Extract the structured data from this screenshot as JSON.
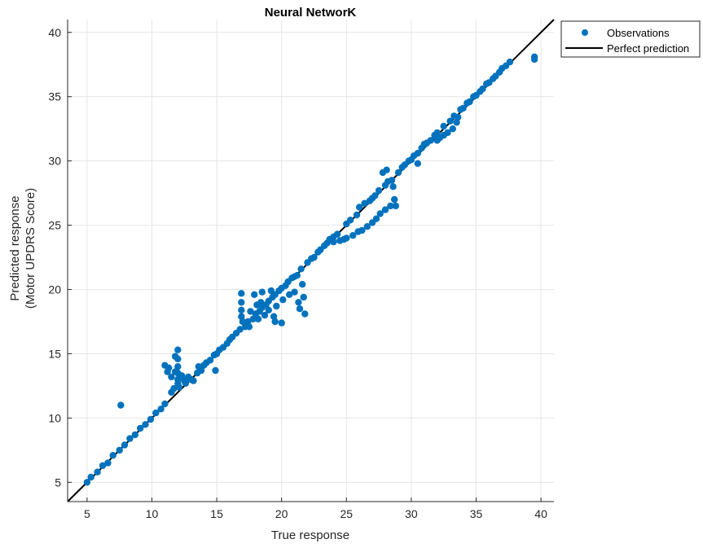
{
  "chart_data": {
    "type": "scatter",
    "title": "Neural NetworK",
    "xlabel": "True response",
    "ylabel_lines": [
      "Predicted response",
      "(Motor UPDRS Score)"
    ],
    "xlim": [
      3.5,
      41
    ],
    "ylim": [
      3.5,
      41
    ],
    "xticks": [
      5,
      10,
      15,
      20,
      25,
      30,
      35,
      40
    ],
    "yticks": [
      5,
      10,
      15,
      20,
      25,
      30,
      35,
      40
    ],
    "grid": true,
    "legend_position": "outside top-right",
    "colors": {
      "observations": "#0072BD",
      "perfect_line": "#000000"
    },
    "series": [
      {
        "name": "Observations",
        "kind": "scatter",
        "points": [
          [
            5.0,
            5.0
          ],
          [
            5.3,
            5.4
          ],
          [
            5.8,
            5.8
          ],
          [
            6.2,
            6.3
          ],
          [
            6.6,
            6.5
          ],
          [
            7.0,
            7.1
          ],
          [
            7.5,
            7.5
          ],
          [
            7.6,
            11.0
          ],
          [
            7.9,
            7.9
          ],
          [
            8.3,
            8.4
          ],
          [
            8.7,
            8.7
          ],
          [
            9.1,
            9.2
          ],
          [
            9.5,
            9.5
          ],
          [
            9.9,
            9.9
          ],
          [
            10.3,
            10.4
          ],
          [
            10.7,
            10.7
          ],
          [
            11.0,
            11.1
          ],
          [
            11.0,
            14.1
          ],
          [
            11.2,
            13.6
          ],
          [
            11.3,
            13.9
          ],
          [
            11.5,
            13.2
          ],
          [
            11.5,
            12.0
          ],
          [
            11.7,
            12.3
          ],
          [
            11.8,
            13.6
          ],
          [
            11.8,
            14.8
          ],
          [
            12.0,
            15.3
          ],
          [
            12.0,
            14.6
          ],
          [
            12.0,
            14.0
          ],
          [
            12.0,
            13.5
          ],
          [
            12.0,
            13.0
          ],
          [
            12.0,
            12.7
          ],
          [
            12.1,
            12.4
          ],
          [
            12.3,
            13.3
          ],
          [
            12.5,
            12.9
          ],
          [
            12.6,
            12.7
          ],
          [
            12.8,
            13.2
          ],
          [
            13.0,
            13.0
          ],
          [
            13.2,
            12.9
          ],
          [
            13.5,
            13.5
          ],
          [
            13.6,
            14.0
          ],
          [
            13.8,
            13.7
          ],
          [
            14.0,
            14.1
          ],
          [
            14.2,
            14.3
          ],
          [
            14.5,
            14.5
          ],
          [
            14.8,
            14.9
          ],
          [
            14.9,
            13.7
          ],
          [
            15.0,
            15.0
          ],
          [
            15.2,
            15.3
          ],
          [
            15.5,
            15.5
          ],
          [
            15.8,
            15.8
          ],
          [
            16.0,
            16.1
          ],
          [
            16.2,
            16.3
          ],
          [
            16.5,
            16.6
          ],
          [
            16.8,
            16.9
          ],
          [
            16.9,
            19.7
          ],
          [
            16.9,
            19.0
          ],
          [
            16.9,
            18.4
          ],
          [
            16.9,
            17.9
          ],
          [
            17.0,
            17.5
          ],
          [
            17.2,
            17.1
          ],
          [
            17.4,
            17.5
          ],
          [
            17.5,
            17.1
          ],
          [
            17.6,
            18.3
          ],
          [
            17.8,
            17.7
          ],
          [
            17.9,
            19.6
          ],
          [
            18.0,
            18.1
          ],
          [
            18.1,
            18.8
          ],
          [
            18.2,
            17.7
          ],
          [
            18.3,
            18.3
          ],
          [
            18.4,
            19.0
          ],
          [
            18.5,
            18.6
          ],
          [
            18.5,
            19.8
          ],
          [
            18.7,
            18.0
          ],
          [
            18.8,
            18.8
          ],
          [
            19.0,
            19.1
          ],
          [
            19.0,
            18.4
          ],
          [
            19.2,
            19.9
          ],
          [
            19.3,
            19.4
          ],
          [
            19.4,
            17.9
          ],
          [
            19.5,
            19.6
          ],
          [
            19.5,
            17.5
          ],
          [
            19.6,
            18.7
          ],
          [
            19.8,
            19.9
          ],
          [
            20.0,
            20.1
          ],
          [
            20.0,
            17.4
          ],
          [
            20.1,
            19.2
          ],
          [
            20.3,
            20.3
          ],
          [
            20.5,
            20.6
          ],
          [
            20.6,
            19.6
          ],
          [
            20.8,
            20.9
          ],
          [
            21.0,
            21.0
          ],
          [
            21.0,
            19.8
          ],
          [
            21.2,
            21.1
          ],
          [
            21.3,
            19.0
          ],
          [
            21.4,
            18.5
          ],
          [
            21.5,
            21.6
          ],
          [
            21.6,
            20.4
          ],
          [
            21.7,
            19.4
          ],
          [
            21.8,
            18.1
          ],
          [
            22.0,
            22.1
          ],
          [
            22.3,
            22.4
          ],
          [
            22.5,
            22.5
          ],
          [
            22.8,
            22.9
          ],
          [
            23.0,
            23.1
          ],
          [
            23.3,
            23.4
          ],
          [
            23.5,
            23.6
          ],
          [
            23.7,
            23.9
          ],
          [
            24.0,
            23.7
          ],
          [
            24.0,
            24.1
          ],
          [
            24.3,
            24.3
          ],
          [
            24.5,
            23.8
          ],
          [
            24.8,
            23.9
          ],
          [
            25.0,
            25.1
          ],
          [
            25.0,
            24.0
          ],
          [
            25.3,
            25.4
          ],
          [
            25.5,
            24.2
          ],
          [
            25.8,
            25.8
          ],
          [
            25.9,
            24.5
          ],
          [
            26.0,
            26.4
          ],
          [
            26.2,
            24.6
          ],
          [
            26.4,
            26.7
          ],
          [
            26.6,
            24.9
          ],
          [
            26.8,
            26.9
          ],
          [
            27.0,
            27.1
          ],
          [
            27.0,
            25.2
          ],
          [
            27.2,
            27.3
          ],
          [
            27.3,
            25.5
          ],
          [
            27.5,
            27.7
          ],
          [
            27.6,
            25.9
          ],
          [
            27.8,
            29.1
          ],
          [
            28.0,
            28.1
          ],
          [
            28.0,
            26.2
          ],
          [
            28.1,
            29.3
          ],
          [
            28.2,
            28.4
          ],
          [
            28.4,
            26.5
          ],
          [
            28.5,
            28.5
          ],
          [
            28.6,
            28.0
          ],
          [
            28.7,
            27.0
          ],
          [
            28.8,
            26.5
          ],
          [
            29.0,
            29.1
          ],
          [
            29.3,
            29.5
          ],
          [
            29.5,
            29.7
          ],
          [
            29.8,
            30.0
          ],
          [
            30.0,
            30.1
          ],
          [
            30.2,
            30.4
          ],
          [
            30.5,
            30.6
          ],
          [
            30.5,
            29.8
          ],
          [
            30.8,
            31.0
          ],
          [
            31.0,
            31.3
          ],
          [
            31.2,
            31.4
          ],
          [
            31.5,
            31.6
          ],
          [
            31.8,
            32.0
          ],
          [
            32.0,
            32.2
          ],
          [
            32.0,
            31.6
          ],
          [
            32.2,
            31.8
          ],
          [
            32.5,
            32.7
          ],
          [
            32.5,
            32.0
          ],
          [
            32.8,
            32.2
          ],
          [
            33.0,
            33.1
          ],
          [
            33.2,
            32.5
          ],
          [
            33.3,
            33.5
          ],
          [
            33.5,
            33.0
          ],
          [
            33.6,
            33.4
          ],
          [
            33.8,
            34.0
          ],
          [
            34.0,
            34.1
          ],
          [
            34.3,
            34.5
          ],
          [
            34.5,
            34.6
          ],
          [
            34.8,
            35.0
          ],
          [
            35.0,
            35.1
          ],
          [
            35.3,
            35.4
          ],
          [
            35.5,
            35.6
          ],
          [
            35.8,
            36.0
          ],
          [
            36.0,
            36.1
          ],
          [
            36.3,
            36.4
          ],
          [
            36.5,
            36.6
          ],
          [
            36.8,
            36.9
          ],
          [
            37.0,
            37.2
          ],
          [
            37.3,
            37.4
          ],
          [
            37.6,
            37.7
          ],
          [
            39.5,
            38.1
          ],
          [
            39.5,
            37.9
          ]
        ]
      },
      {
        "name": "Perfect prediction",
        "kind": "line",
        "x": [
          3.5,
          41
        ],
        "y": [
          3.5,
          41
        ]
      }
    ],
    "legend": [
      {
        "label": "Observations",
        "marker": "dot"
      },
      {
        "label": "Perfect prediction",
        "marker": "line"
      }
    ]
  }
}
